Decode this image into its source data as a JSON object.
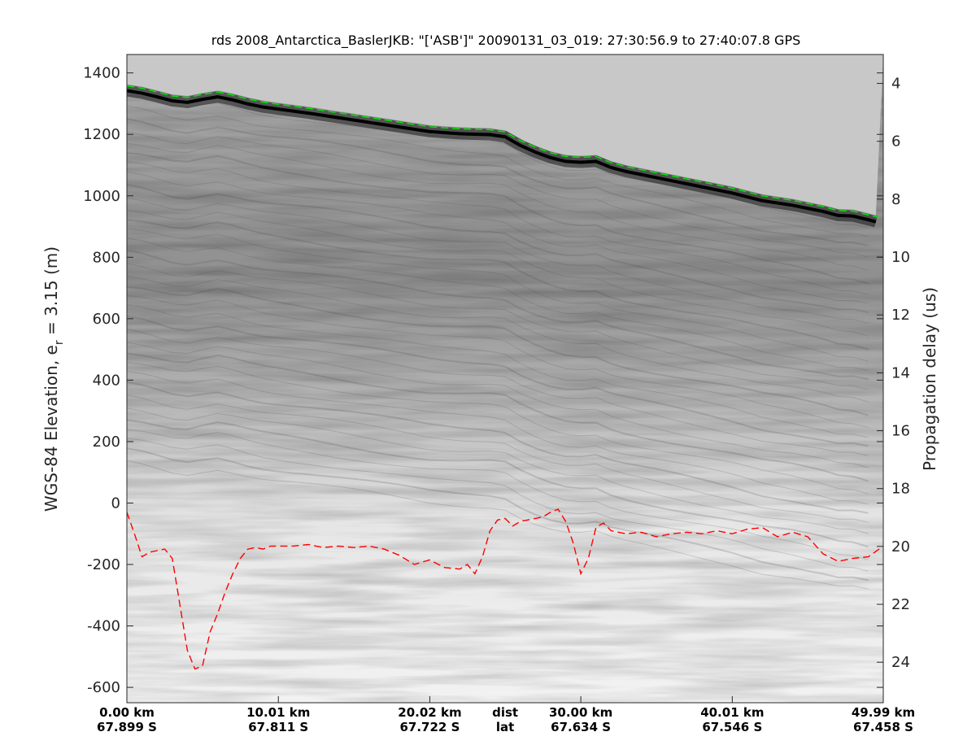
{
  "chart_data": {
    "type": "line",
    "title": "rds 2008_Antarctica_BaslerJKB: \"['ASB']\"  20090131_03_019: 27:30:56.9 to 27:40:07.8 GPS",
    "ylabel_main": "WGS-84 Elevation, e",
    "ylabel_sub": "r",
    "ylabel_rest": " = 3.15 (m)",
    "y2label": "Propagation delay (us)",
    "xlim": [
      0,
      49.99
    ],
    "ylim": [
      -650,
      1460
    ],
    "y2lim": [
      3.0,
      25.4
    ],
    "yticks": [
      -600,
      -400,
      -200,
      0,
      200,
      400,
      600,
      800,
      1000,
      1200,
      1400
    ],
    "y2ticks": [
      4,
      6,
      8,
      10,
      12,
      14,
      16,
      18,
      20,
      22,
      24
    ],
    "xticks": [
      {
        "x": 0.0,
        "dist": "0.00 km",
        "lat": "67.899 S"
      },
      {
        "x": 10.01,
        "dist": "10.01 km",
        "lat": "67.811 S"
      },
      {
        "x": 20.02,
        "dist": "20.02 km",
        "lat": "67.722 S"
      },
      {
        "x": 30.0,
        "dist": "30.00 km",
        "lat": "67.634 S"
      },
      {
        "x": 40.01,
        "dist": "40.01 km",
        "lat": "67.546 S"
      },
      {
        "x": 49.99,
        "dist": "49.99 km",
        "lat": "67.458 S"
      }
    ],
    "row_labels": {
      "dist": "dist",
      "lat": "lat",
      "x": 25.0
    },
    "grid": false,
    "background": "radar echogram (grayscale)",
    "series": [
      {
        "color": "#00ee00",
        "style": "dashed",
        "x": [
          0,
          1,
          2,
          3,
          4,
          5,
          6,
          7,
          8,
          9,
          10,
          12,
          14,
          16,
          18,
          20,
          22,
          24,
          25,
          26,
          27,
          28,
          29,
          30,
          31,
          32,
          33,
          34,
          35,
          36,
          38,
          40,
          42,
          44,
          46,
          47,
          48,
          49,
          49.99
        ],
        "y": [
          1358,
          1350,
          1338,
          1325,
          1320,
          1330,
          1338,
          1328,
          1315,
          1305,
          1298,
          1285,
          1270,
          1255,
          1240,
          1225,
          1218,
          1215,
          1208,
          1180,
          1158,
          1140,
          1128,
          1125,
          1128,
          1108,
          1095,
          1085,
          1075,
          1065,
          1045,
          1025,
          1000,
          985,
          965,
          952,
          950,
          938,
          925
        ]
      },
      {
        "color": "#ff0000",
        "style": "dashed",
        "x": [
          0,
          0.5,
          1,
          1.5,
          2,
          2.5,
          3,
          3.5,
          4,
          4.5,
          5,
          5.5,
          6,
          6.5,
          7,
          7.5,
          8,
          8.5,
          9,
          9.5,
          10,
          11,
          12,
          13,
          14,
          15,
          16,
          17,
          18,
          19,
          20,
          21,
          22,
          22.5,
          23,
          23.5,
          24,
          24.5,
          25,
          25.5,
          26,
          27,
          27.5,
          28,
          28.5,
          29,
          29.5,
          30,
          30.5,
          31,
          31.5,
          32,
          33,
          34,
          35,
          36,
          37,
          38,
          39,
          40,
          41,
          42,
          43,
          44,
          45,
          46,
          47,
          48,
          49,
          49.99
        ],
        "y": [
          -30,
          -100,
          -175,
          -160,
          -155,
          -150,
          -180,
          -330,
          -480,
          -540,
          -530,
          -420,
          -360,
          -290,
          -230,
          -180,
          -150,
          -145,
          -150,
          -140,
          -140,
          -140,
          -135,
          -145,
          -140,
          -145,
          -140,
          -150,
          -170,
          -200,
          -185,
          -210,
          -215,
          -200,
          -230,
          -175,
          -90,
          -55,
          -50,
          -75,
          -60,
          -50,
          -45,
          -30,
          -20,
          -60,
          -130,
          -230,
          -180,
          -80,
          -65,
          -90,
          -100,
          -95,
          -110,
          -100,
          -95,
          -100,
          -90,
          -100,
          -85,
          -80,
          -110,
          -95,
          -110,
          -165,
          -190,
          -180,
          -175,
          -140
        ]
      }
    ]
  }
}
